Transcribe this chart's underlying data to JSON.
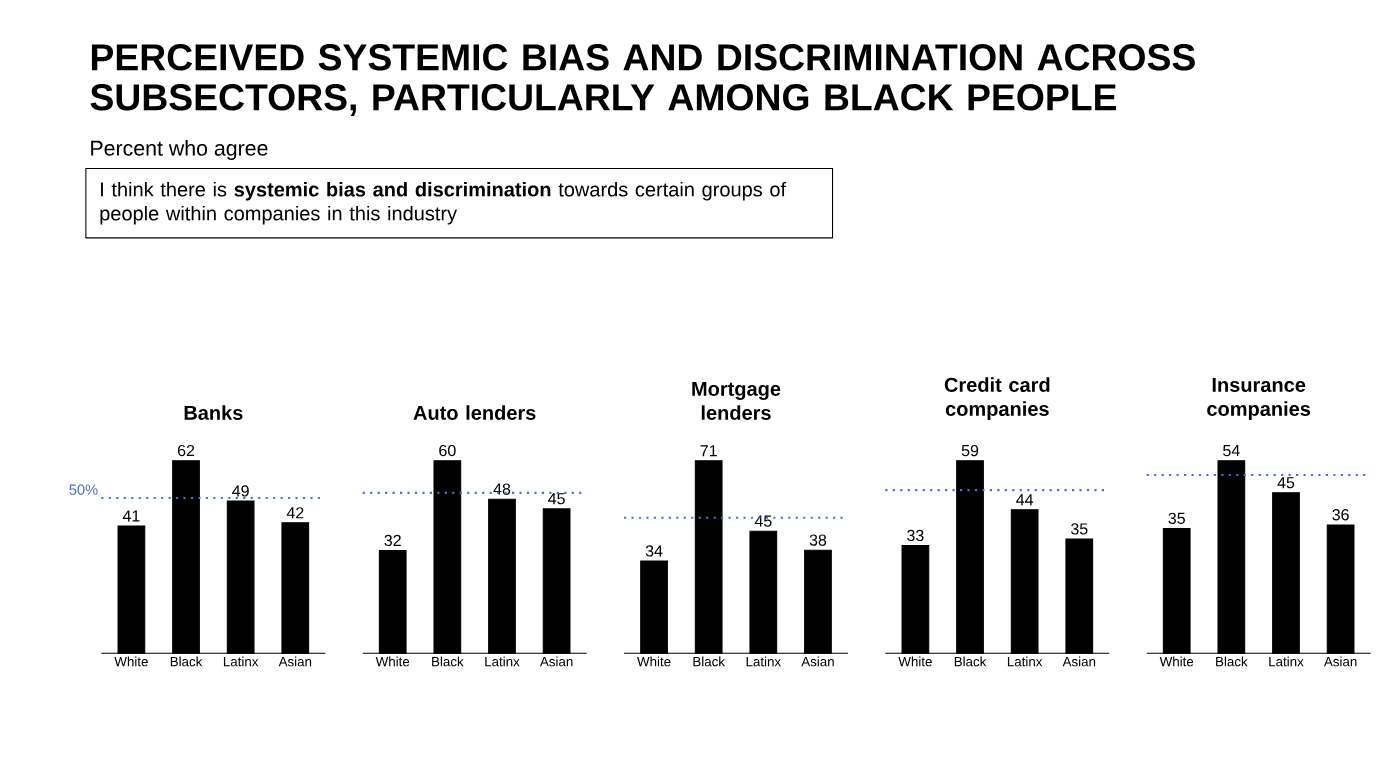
{
  "chart_data": [
    {
      "type": "other",
      "title": "PERCEIVED SYSTEMIC BIAS AND DISCRIMINATION ACROSS SUBSECTORS, PARTICULARLY AMONG BLACK PEOPLE",
      "subtitle": "Percent who agree",
      "annotations": [
        "I think there is **systemic bias and discrimination** towards certain groups of people within companies in this industry"
      ]
    },
    {
      "type": "bar",
      "title": "Banks",
      "categories": [
        "White",
        "Black",
        "Latinx",
        "Asian"
      ],
      "values": [
        41,
        62,
        49,
        42
      ],
      "color": "#000000",
      "data_labels": true,
      "ref_lines": [
        {
          "axis": "y",
          "value": 50,
          "label": "50%",
          "color": "#4a6fd0",
          "line_style": "dotted"
        }
      ]
    },
    {
      "type": "bar",
      "title": "Auto lenders",
      "categories": [
        "White",
        "Black",
        "Latinx",
        "Asian"
      ],
      "values": [
        32,
        60,
        48,
        45
      ],
      "color": "#000000",
      "data_labels": true,
      "ref_lines": [
        {
          "axis": "y",
          "value": 50,
          "color": "#4a6fd0",
          "line_style": "dotted"
        }
      ]
    },
    {
      "type": "bar",
      "title": "Mortgage lenders",
      "categories": [
        "White",
        "Black",
        "Latinx",
        "Asian"
      ],
      "values": [
        34,
        71,
        45,
        38
      ],
      "color": "#000000",
      "data_labels": true,
      "ref_lines": [
        {
          "axis": "y",
          "value": 50,
          "color": "#4a6fd0",
          "line_style": "dotted"
        }
      ]
    },
    {
      "type": "bar",
      "title": "Credit card companies",
      "categories": [
        "White",
        "Black",
        "Latinx",
        "Asian"
      ],
      "values": [
        33,
        59,
        44,
        35
      ],
      "color": "#000000",
      "data_labels": true,
      "ref_lines": [
        {
          "axis": "y",
          "value": 50,
          "color": "#4a6fd0",
          "line_style": "dotted"
        }
      ]
    },
    {
      "type": "bar",
      "title": "Insurance companies",
      "categories": [
        "White",
        "Black",
        "Latinx",
        "Asian"
      ],
      "values": [
        35,
        54,
        45,
        36
      ],
      "color": "#000000",
      "data_labels": true,
      "ref_lines": [
        {
          "axis": "y",
          "value": 50,
          "color": "#4a6fd0",
          "line_style": "dotted"
        }
      ]
    }
  ]
}
